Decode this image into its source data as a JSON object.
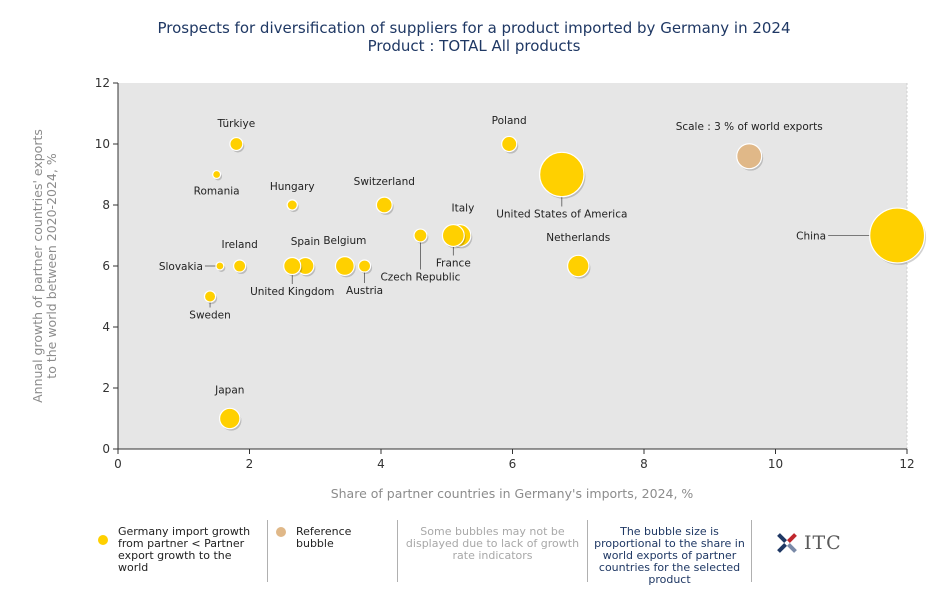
{
  "chart_data": {
    "type": "scatter",
    "title": "Prospects for diversification of suppliers for a product imported by Germany in 2024",
    "subtitle": "Product : TOTAL All products",
    "xlabel": "Share of partner countries in Germany's imports, 2024, %",
    "ylabel_line1": "Annual growth of partner countries' exports",
    "ylabel_line2": "to the world between 2020-2024, %",
    "xlim": [
      0,
      12
    ],
    "ylim": [
      0,
      12
    ],
    "xticks": [
      "0",
      "2",
      "4",
      "6",
      "8",
      "10",
      "12"
    ],
    "yticks": [
      "0",
      "2",
      "4",
      "6",
      "8",
      "10",
      "12"
    ],
    "grid": false,
    "series": [
      {
        "name": "Germany import growth from partner < Partner export growth to the world",
        "color": "#ffd000",
        "points": [
          {
            "label": "Türkiye",
            "x": 1.8,
            "y": 10,
            "size": 0.8
          },
          {
            "label": "Romania",
            "x": 1.5,
            "y": 9,
            "size": 0.3
          },
          {
            "label": "Hungary",
            "x": 2.65,
            "y": 8,
            "size": 0.5
          },
          {
            "label": "Switzerland",
            "x": 4.05,
            "y": 8,
            "size": 1.2
          },
          {
            "label": "Poland",
            "x": 5.95,
            "y": 10,
            "size": 1.1
          },
          {
            "label": "United States of America",
            "x": 6.75,
            "y": 9,
            "size": 9.5
          },
          {
            "label": "Italy",
            "x": 5.2,
            "y": 7,
            "size": 2.3
          },
          {
            "label": "France",
            "x": 5.1,
            "y": 7,
            "size": 2.3
          },
          {
            "label": "Czech Republic",
            "x": 4.6,
            "y": 7,
            "size": 0.8
          },
          {
            "label": "China",
            "x": 11.85,
            "y": 7,
            "size": 14.5
          },
          {
            "label": "Netherlands",
            "x": 7.0,
            "y": 6,
            "size": 2.2
          },
          {
            "label": "Slovakia",
            "x": 1.55,
            "y": 6,
            "size": 0.3
          },
          {
            "label": "Ireland",
            "x": 1.85,
            "y": 6,
            "size": 0.7
          },
          {
            "label": "Spain",
            "x": 2.85,
            "y": 6,
            "size": 1.4
          },
          {
            "label": "United Kingdom",
            "x": 2.65,
            "y": 6,
            "size": 1.4
          },
          {
            "label": "Belgium",
            "x": 3.45,
            "y": 6,
            "size": 1.7
          },
          {
            "label": "Austria",
            "x": 3.75,
            "y": 6,
            "size": 0.7
          },
          {
            "label": "Sweden",
            "x": 1.4,
            "y": 5,
            "size": 0.6
          },
          {
            "label": "Japan",
            "x": 1.7,
            "y": 1,
            "size": 2.0
          }
        ]
      },
      {
        "name": "Reference bubble",
        "color": "#e0b888",
        "points": [
          {
            "label": "Scale : 3 % of world exports",
            "x": 9.6,
            "y": 9.6,
            "size": 3.0
          }
        ]
      }
    ]
  },
  "legend": {
    "item1": "Germany import growth from partner < Partner export growth to the world",
    "item2": "Reference bubble",
    "note_gray": "Some bubbles may not be displayed due to lack of growth rate indicators",
    "note_navy": "The bubble size is proportional to the share in world exports of partner countries for the selected product",
    "logo_text": "ITC"
  }
}
